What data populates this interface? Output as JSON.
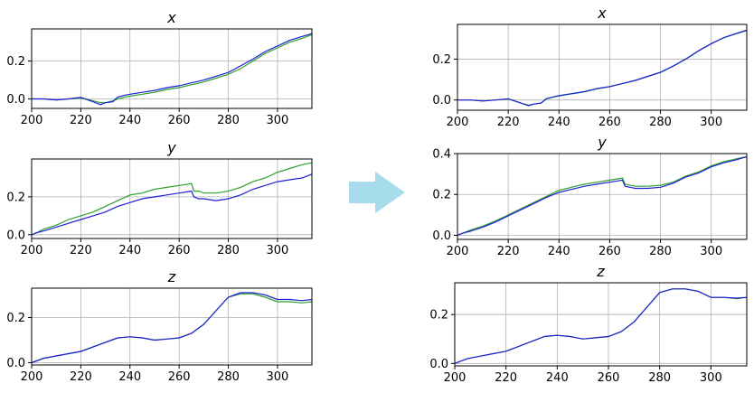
{
  "colors": {
    "green": "#2ca02c",
    "blue": "#1f1fd6",
    "arrow": "#a6dcec",
    "grid": "#b0b0b0"
  },
  "arrow_icon": "right-arrow-icon",
  "panels_meta": {
    "left": "before-alignment",
    "right": "after-alignment"
  },
  "chart_data": [
    {
      "type": "line",
      "group": "left",
      "title": "x",
      "xlim": [
        200,
        314
      ],
      "ylim": [
        -0.05,
        0.37
      ],
      "xticks": [
        200,
        220,
        240,
        260,
        280,
        300
      ],
      "yticks": [
        0.0,
        0.2
      ],
      "ytick_labels": [
        "0.0",
        "0.2"
      ],
      "grid": true,
      "series": [
        {
          "color_key": "green",
          "x": [
            200,
            205,
            210,
            215,
            220,
            225,
            228,
            230,
            233,
            235,
            238,
            240,
            245,
            250,
            255,
            260,
            265,
            270,
            275,
            280,
            285,
            290,
            295,
            300,
            305,
            310,
            314
          ],
          "y": [
            0.0,
            0.0,
            -0.005,
            0.0,
            0.005,
            -0.01,
            -0.02,
            -0.02,
            -0.01,
            0.0,
            0.01,
            0.015,
            0.025,
            0.035,
            0.05,
            0.06,
            0.075,
            0.09,
            0.11,
            0.13,
            0.16,
            0.2,
            0.24,
            0.27,
            0.3,
            0.32,
            0.34
          ]
        },
        {
          "color_key": "blue",
          "x": [
            200,
            205,
            210,
            215,
            220,
            225,
            228,
            230,
            233,
            235,
            238,
            240,
            245,
            250,
            255,
            260,
            265,
            270,
            275,
            280,
            285,
            290,
            295,
            300,
            305,
            310,
            314
          ],
          "y": [
            0.0,
            0.0,
            -0.005,
            0.0,
            0.008,
            -0.015,
            -0.03,
            -0.02,
            -0.015,
            0.01,
            0.02,
            0.025,
            0.035,
            0.045,
            0.06,
            0.07,
            0.085,
            0.1,
            0.12,
            0.14,
            0.175,
            0.21,
            0.25,
            0.28,
            0.31,
            0.33,
            0.345
          ]
        }
      ]
    },
    {
      "type": "line",
      "group": "left",
      "title": "y",
      "xlim": [
        200,
        314
      ],
      "ylim": [
        -0.02,
        0.4
      ],
      "xticks": [
        200,
        220,
        240,
        260,
        280,
        300
      ],
      "yticks": [
        0.0,
        0.2
      ],
      "ytick_labels": [
        "0.0",
        "0.2"
      ],
      "grid": true,
      "series": [
        {
          "color_key": "green",
          "x": [
            200,
            202,
            205,
            210,
            215,
            220,
            225,
            230,
            235,
            240,
            245,
            250,
            255,
            260,
            265,
            266,
            268,
            270,
            275,
            280,
            285,
            290,
            295,
            300,
            305,
            310,
            314
          ],
          "y": [
            0.0,
            0.01,
            0.03,
            0.05,
            0.08,
            0.1,
            0.12,
            0.15,
            0.18,
            0.21,
            0.22,
            0.24,
            0.25,
            0.26,
            0.27,
            0.23,
            0.23,
            0.22,
            0.22,
            0.23,
            0.25,
            0.28,
            0.3,
            0.33,
            0.35,
            0.37,
            0.38
          ]
        },
        {
          "color_key": "blue",
          "x": [
            200,
            202,
            205,
            210,
            215,
            220,
            225,
            230,
            235,
            240,
            245,
            250,
            255,
            260,
            265,
            266,
            268,
            270,
            275,
            280,
            285,
            290,
            295,
            300,
            305,
            310,
            314
          ],
          "y": [
            0.0,
            0.01,
            0.02,
            0.04,
            0.06,
            0.08,
            0.1,
            0.12,
            0.15,
            0.17,
            0.19,
            0.2,
            0.21,
            0.22,
            0.23,
            0.2,
            0.19,
            0.19,
            0.18,
            0.19,
            0.21,
            0.24,
            0.26,
            0.28,
            0.29,
            0.3,
            0.32
          ]
        }
      ]
    },
    {
      "type": "line",
      "group": "left",
      "title": "z",
      "xlim": [
        200,
        314
      ],
      "ylim": [
        -0.01,
        0.33
      ],
      "xticks": [
        200,
        220,
        240,
        260,
        280,
        300
      ],
      "yticks": [
        0.0,
        0.2
      ],
      "ytick_labels": [
        "0.0",
        "0.2"
      ],
      "grid": true,
      "series": [
        {
          "color_key": "green",
          "x": [
            200,
            205,
            210,
            215,
            220,
            225,
            230,
            235,
            240,
            245,
            250,
            255,
            260,
            265,
            270,
            275,
            280,
            285,
            290,
            295,
            300,
            305,
            310,
            314
          ],
          "y": [
            0.0,
            0.02,
            0.03,
            0.04,
            0.05,
            0.07,
            0.09,
            0.11,
            0.115,
            0.11,
            0.1,
            0.105,
            0.11,
            0.13,
            0.17,
            0.23,
            0.29,
            0.305,
            0.305,
            0.29,
            0.27,
            0.27,
            0.265,
            0.27
          ]
        },
        {
          "color_key": "blue",
          "x": [
            200,
            205,
            210,
            215,
            220,
            225,
            230,
            235,
            240,
            245,
            250,
            255,
            260,
            265,
            270,
            275,
            280,
            285,
            290,
            295,
            300,
            305,
            310,
            314
          ],
          "y": [
            0.0,
            0.02,
            0.03,
            0.04,
            0.05,
            0.07,
            0.09,
            0.11,
            0.115,
            0.11,
            0.1,
            0.105,
            0.11,
            0.13,
            0.17,
            0.23,
            0.29,
            0.31,
            0.31,
            0.3,
            0.28,
            0.28,
            0.275,
            0.28
          ]
        }
      ]
    },
    {
      "type": "line",
      "group": "right",
      "title": "x",
      "xlim": [
        200,
        314
      ],
      "ylim": [
        -0.05,
        0.37
      ],
      "xticks": [
        200,
        220,
        240,
        260,
        280,
        300
      ],
      "yticks": [
        0.0,
        0.2
      ],
      "ytick_labels": [
        "0.0",
        "0.2"
      ],
      "grid": true,
      "series": [
        {
          "color_key": "green",
          "x": [
            200,
            205,
            210,
            215,
            220,
            225,
            228,
            230,
            233,
            235,
            238,
            240,
            245,
            250,
            255,
            260,
            265,
            270,
            275,
            280,
            285,
            290,
            295,
            300,
            305,
            310,
            314
          ],
          "y": [
            0.0,
            0.0,
            -0.005,
            0.0,
            0.005,
            -0.015,
            -0.025,
            -0.02,
            -0.015,
            0.005,
            0.015,
            0.02,
            0.03,
            0.04,
            0.055,
            0.065,
            0.08,
            0.095,
            0.115,
            0.135,
            0.165,
            0.2,
            0.24,
            0.275,
            0.305,
            0.325,
            0.34
          ]
        },
        {
          "color_key": "blue",
          "x": [
            200,
            205,
            210,
            215,
            220,
            225,
            228,
            230,
            233,
            235,
            238,
            240,
            245,
            250,
            255,
            260,
            265,
            270,
            275,
            280,
            285,
            290,
            295,
            300,
            305,
            310,
            314
          ],
          "y": [
            0.0,
            0.0,
            -0.005,
            0.0,
            0.006,
            -0.015,
            -0.028,
            -0.02,
            -0.015,
            0.006,
            0.016,
            0.021,
            0.031,
            0.041,
            0.056,
            0.066,
            0.081,
            0.096,
            0.116,
            0.136,
            0.166,
            0.201,
            0.241,
            0.276,
            0.306,
            0.326,
            0.342
          ]
        }
      ]
    },
    {
      "type": "line",
      "group": "right",
      "title": "y",
      "xlim": [
        200,
        314
      ],
      "ylim": [
        -0.02,
        0.4
      ],
      "xticks": [
        200,
        220,
        240,
        260,
        280,
        300
      ],
      "yticks": [
        0.0,
        0.2,
        0.4
      ],
      "ytick_labels": [
        "0.0",
        "0.2",
        "0.4"
      ],
      "grid": true,
      "series": [
        {
          "color_key": "green",
          "x": [
            200,
            202,
            205,
            210,
            215,
            220,
            225,
            230,
            235,
            240,
            245,
            250,
            255,
            260,
            265,
            266,
            268,
            270,
            275,
            280,
            285,
            290,
            295,
            300,
            305,
            310,
            314
          ],
          "y": [
            0.0,
            0.01,
            0.025,
            0.045,
            0.07,
            0.1,
            0.13,
            0.16,
            0.19,
            0.22,
            0.235,
            0.25,
            0.26,
            0.27,
            0.28,
            0.25,
            0.245,
            0.24,
            0.24,
            0.245,
            0.26,
            0.29,
            0.31,
            0.34,
            0.36,
            0.375,
            0.385
          ]
        },
        {
          "color_key": "blue",
          "x": [
            200,
            202,
            205,
            210,
            215,
            220,
            225,
            230,
            235,
            240,
            245,
            250,
            255,
            260,
            265,
            266,
            268,
            270,
            275,
            280,
            285,
            290,
            295,
            300,
            305,
            310,
            314
          ],
          "y": [
            0.0,
            0.01,
            0.02,
            0.04,
            0.065,
            0.095,
            0.125,
            0.155,
            0.185,
            0.21,
            0.225,
            0.24,
            0.25,
            0.26,
            0.27,
            0.24,
            0.235,
            0.23,
            0.23,
            0.235,
            0.255,
            0.285,
            0.305,
            0.335,
            0.355,
            0.37,
            0.385
          ]
        }
      ]
    },
    {
      "type": "line",
      "group": "right",
      "title": "z",
      "xlim": [
        200,
        314
      ],
      "ylim": [
        -0.01,
        0.33
      ],
      "xticks": [
        200,
        220,
        240,
        260,
        280,
        300
      ],
      "yticks": [
        0.0,
        0.2
      ],
      "ytick_labels": [
        "0.0",
        "0.2"
      ],
      "grid": true,
      "series": [
        {
          "color_key": "green",
          "x": [
            200,
            205,
            210,
            215,
            220,
            225,
            230,
            235,
            240,
            245,
            250,
            255,
            260,
            265,
            270,
            275,
            280,
            285,
            290,
            295,
            300,
            305,
            310,
            314
          ],
          "y": [
            0.0,
            0.02,
            0.03,
            0.04,
            0.05,
            0.07,
            0.09,
            0.11,
            0.115,
            0.11,
            0.1,
            0.105,
            0.11,
            0.13,
            0.17,
            0.23,
            0.29,
            0.305,
            0.305,
            0.295,
            0.27,
            0.27,
            0.265,
            0.27
          ]
        },
        {
          "color_key": "blue",
          "x": [
            200,
            205,
            210,
            215,
            220,
            225,
            230,
            235,
            240,
            245,
            250,
            255,
            260,
            265,
            270,
            275,
            280,
            285,
            290,
            295,
            300,
            305,
            310,
            314
          ],
          "y": [
            0.0,
            0.02,
            0.03,
            0.04,
            0.05,
            0.07,
            0.09,
            0.11,
            0.115,
            0.11,
            0.1,
            0.105,
            0.11,
            0.13,
            0.17,
            0.23,
            0.29,
            0.305,
            0.305,
            0.295,
            0.27,
            0.27,
            0.267,
            0.27
          ]
        }
      ]
    }
  ]
}
